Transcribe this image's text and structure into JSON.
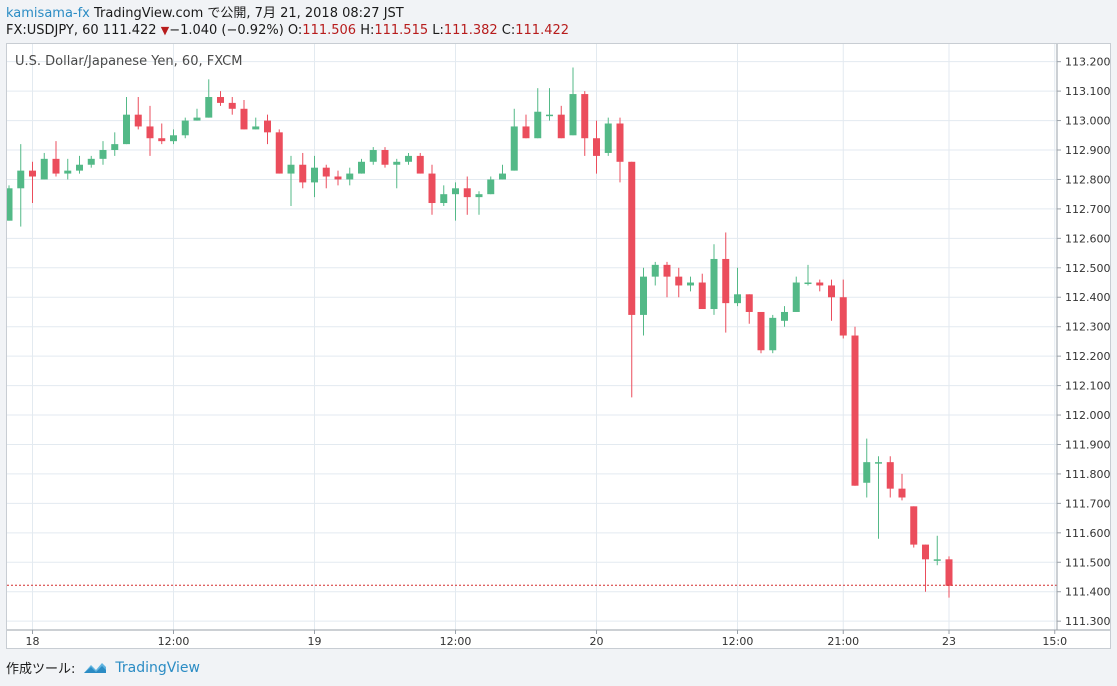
{
  "header": {
    "author": "kamisama-fx",
    "site": "TradingView.com",
    "published": "で公開, 7月 21, 2018 08:27 JST",
    "symbol_line": "FX:USDJPY, 60 111.422",
    "change": "−1.040 (−0.92%)",
    "o_label": "O:",
    "o_value": "111.506",
    "h_label": "H:",
    "h_value": "111.515",
    "l_label": "L:",
    "l_value": "111.382",
    "c_label": "C:",
    "c_value": "111.422"
  },
  "footer": {
    "made_with": "作成ツール:",
    "brand": "TradingView"
  },
  "colors": {
    "up": "#53b987",
    "down": "#eb4d5c",
    "grid": "#e3eaf0",
    "last_line": "#d32f2f",
    "text": "#4a4a4a"
  },
  "chart_data": {
    "type": "candlestick",
    "title": "U.S. Dollar/Japanese Yen, 60, FXCM",
    "y_ticks": [
      "113.200",
      "113.100",
      "113.000",
      "112.900",
      "112.800",
      "112.700",
      "112.600",
      "112.500",
      "112.400",
      "112.300",
      "112.200",
      "112.100",
      "112.000",
      "111.900",
      "111.800",
      "111.700",
      "111.600",
      "111.500",
      "111.400",
      "111.300"
    ],
    "ylim": [
      111.27,
      113.26
    ],
    "x_ticks": [
      {
        "i": 2,
        "label": "18"
      },
      {
        "i": 14,
        "label": "12:00"
      },
      {
        "i": 26,
        "label": "19"
      },
      {
        "i": 38,
        "label": "12:00"
      },
      {
        "i": 50,
        "label": "20"
      },
      {
        "i": 62,
        "label": "12:00"
      },
      {
        "i": 71,
        "label": "21:00"
      },
      {
        "i": 80,
        "label": "23"
      },
      {
        "i": 89,
        "label": "15:0"
      }
    ],
    "last_price": 111.422,
    "candles": [
      {
        "o": 112.66,
        "h": 112.78,
        "l": 112.66,
        "c": 112.77
      },
      {
        "o": 112.77,
        "h": 112.92,
        "l": 112.64,
        "c": 112.83
      },
      {
        "o": 112.83,
        "h": 112.86,
        "l": 112.72,
        "c": 112.81
      },
      {
        "o": 112.8,
        "h": 112.89,
        "l": 112.8,
        "c": 112.87
      },
      {
        "o": 112.87,
        "h": 112.93,
        "l": 112.81,
        "c": 112.82
      },
      {
        "o": 112.82,
        "h": 112.87,
        "l": 112.8,
        "c": 112.83
      },
      {
        "o": 112.83,
        "h": 112.88,
        "l": 112.82,
        "c": 112.85
      },
      {
        "o": 112.85,
        "h": 112.88,
        "l": 112.84,
        "c": 112.87
      },
      {
        "o": 112.87,
        "h": 112.93,
        "l": 112.85,
        "c": 112.9
      },
      {
        "o": 112.9,
        "h": 112.96,
        "l": 112.88,
        "c": 112.92
      },
      {
        "o": 112.92,
        "h": 113.08,
        "l": 112.92,
        "c": 113.02
      },
      {
        "o": 113.02,
        "h": 113.08,
        "l": 112.97,
        "c": 112.98
      },
      {
        "o": 112.98,
        "h": 113.05,
        "l": 112.88,
        "c": 112.94
      },
      {
        "o": 112.94,
        "h": 112.99,
        "l": 112.92,
        "c": 112.93
      },
      {
        "o": 112.93,
        "h": 112.97,
        "l": 112.92,
        "c": 112.95
      },
      {
        "o": 112.95,
        "h": 113.01,
        "l": 112.94,
        "c": 113.0
      },
      {
        "o": 113.0,
        "h": 113.04,
        "l": 113.0,
        "c": 113.01
      },
      {
        "o": 113.01,
        "h": 113.14,
        "l": 113.01,
        "c": 113.08
      },
      {
        "o": 113.08,
        "h": 113.1,
        "l": 113.05,
        "c": 113.06
      },
      {
        "o": 113.06,
        "h": 113.08,
        "l": 113.02,
        "c": 113.04
      },
      {
        "o": 113.04,
        "h": 113.07,
        "l": 112.97,
        "c": 112.97
      },
      {
        "o": 112.97,
        "h": 113.01,
        "l": 112.97,
        "c": 112.98
      },
      {
        "o": 113.0,
        "h": 113.02,
        "l": 112.92,
        "c": 112.96
      },
      {
        "o": 112.96,
        "h": 112.97,
        "l": 112.82,
        "c": 112.82
      },
      {
        "o": 112.82,
        "h": 112.88,
        "l": 112.71,
        "c": 112.85
      },
      {
        "o": 112.85,
        "h": 112.89,
        "l": 112.77,
        "c": 112.79
      },
      {
        "o": 112.79,
        "h": 112.88,
        "l": 112.74,
        "c": 112.84
      },
      {
        "o": 112.84,
        "h": 112.85,
        "l": 112.77,
        "c": 112.81
      },
      {
        "o": 112.81,
        "h": 112.83,
        "l": 112.78,
        "c": 112.8
      },
      {
        "o": 112.8,
        "h": 112.84,
        "l": 112.78,
        "c": 112.82
      },
      {
        "o": 112.82,
        "h": 112.87,
        "l": 112.82,
        "c": 112.86
      },
      {
        "o": 112.86,
        "h": 112.91,
        "l": 112.85,
        "c": 112.9
      },
      {
        "o": 112.9,
        "h": 112.91,
        "l": 112.84,
        "c": 112.85
      },
      {
        "o": 112.85,
        "h": 112.87,
        "l": 112.77,
        "c": 112.86
      },
      {
        "o": 112.86,
        "h": 112.89,
        "l": 112.85,
        "c": 112.88
      },
      {
        "o": 112.88,
        "h": 112.89,
        "l": 112.82,
        "c": 112.82
      },
      {
        "o": 112.82,
        "h": 112.85,
        "l": 112.68,
        "c": 112.72
      },
      {
        "o": 112.72,
        "h": 112.78,
        "l": 112.71,
        "c": 112.75
      },
      {
        "o": 112.75,
        "h": 112.79,
        "l": 112.66,
        "c": 112.77
      },
      {
        "o": 112.77,
        "h": 112.81,
        "l": 112.68,
        "c": 112.74
      },
      {
        "o": 112.74,
        "h": 112.76,
        "l": 112.68,
        "c": 112.75
      },
      {
        "o": 112.75,
        "h": 112.81,
        "l": 112.75,
        "c": 112.8
      },
      {
        "o": 112.8,
        "h": 112.85,
        "l": 112.8,
        "c": 112.82
      },
      {
        "o": 112.83,
        "h": 113.04,
        "l": 112.83,
        "c": 112.98
      },
      {
        "o": 112.98,
        "h": 113.02,
        "l": 112.94,
        "c": 112.94
      },
      {
        "o": 112.94,
        "h": 113.11,
        "l": 112.94,
        "c": 113.03
      },
      {
        "o": 113.02,
        "h": 113.11,
        "l": 113.0,
        "c": 113.02
      },
      {
        "o": 113.02,
        "h": 113.05,
        "l": 112.94,
        "c": 112.94
      },
      {
        "o": 112.95,
        "h": 113.18,
        "l": 112.95,
        "c": 113.09
      },
      {
        "o": 113.09,
        "h": 113.1,
        "l": 112.88,
        "c": 112.94
      },
      {
        "o": 112.94,
        "h": 113.0,
        "l": 112.82,
        "c": 112.88
      },
      {
        "o": 112.89,
        "h": 113.01,
        "l": 112.88,
        "c": 112.99
      },
      {
        "o": 112.99,
        "h": 113.01,
        "l": 112.79,
        "c": 112.86
      },
      {
        "o": 112.86,
        "h": 112.86,
        "l": 112.06,
        "c": 112.34
      },
      {
        "o": 112.34,
        "h": 112.5,
        "l": 112.27,
        "c": 112.47
      },
      {
        "o": 112.47,
        "h": 112.52,
        "l": 112.44,
        "c": 112.51
      },
      {
        "o": 112.51,
        "h": 112.52,
        "l": 112.4,
        "c": 112.47
      },
      {
        "o": 112.47,
        "h": 112.5,
        "l": 112.4,
        "c": 112.44
      },
      {
        "o": 112.44,
        "h": 112.47,
        "l": 112.42,
        "c": 112.45
      },
      {
        "o": 112.45,
        "h": 112.48,
        "l": 112.36,
        "c": 112.36
      },
      {
        "o": 112.36,
        "h": 112.58,
        "l": 112.34,
        "c": 112.53
      },
      {
        "o": 112.53,
        "h": 112.62,
        "l": 112.28,
        "c": 112.38
      },
      {
        "o": 112.38,
        "h": 112.5,
        "l": 112.37,
        "c": 112.41
      },
      {
        "o": 112.41,
        "h": 112.41,
        "l": 112.31,
        "c": 112.35
      },
      {
        "o": 112.35,
        "h": 112.35,
        "l": 112.21,
        "c": 112.22
      },
      {
        "o": 112.22,
        "h": 112.34,
        "l": 112.21,
        "c": 112.33
      },
      {
        "o": 112.32,
        "h": 112.37,
        "l": 112.3,
        "c": 112.35
      },
      {
        "o": 112.35,
        "h": 112.47,
        "l": 112.35,
        "c": 112.45
      },
      {
        "o": 112.45,
        "h": 112.51,
        "l": 112.44,
        "c": 112.45
      },
      {
        "o": 112.45,
        "h": 112.46,
        "l": 112.42,
        "c": 112.44
      },
      {
        "o": 112.44,
        "h": 112.46,
        "l": 112.32,
        "c": 112.4
      },
      {
        "o": 112.4,
        "h": 112.46,
        "l": 112.26,
        "c": 112.27
      },
      {
        "o": 112.27,
        "h": 112.3,
        "l": 111.76,
        "c": 111.76
      },
      {
        "o": 111.77,
        "h": 111.92,
        "l": 111.72,
        "c": 111.84
      },
      {
        "o": 111.84,
        "h": 111.86,
        "l": 111.58,
        "c": 111.84
      },
      {
        "o": 111.84,
        "h": 111.86,
        "l": 111.72,
        "c": 111.75
      },
      {
        "o": 111.75,
        "h": 111.8,
        "l": 111.71,
        "c": 111.72
      },
      {
        "o": 111.69,
        "h": 111.69,
        "l": 111.55,
        "c": 111.56
      },
      {
        "o": 111.56,
        "h": 111.56,
        "l": 111.4,
        "c": 111.51
      },
      {
        "o": 111.51,
        "h": 111.59,
        "l": 111.49,
        "c": 111.51
      },
      {
        "o": 111.51,
        "h": 111.52,
        "l": 111.38,
        "c": 111.42
      }
    ]
  }
}
